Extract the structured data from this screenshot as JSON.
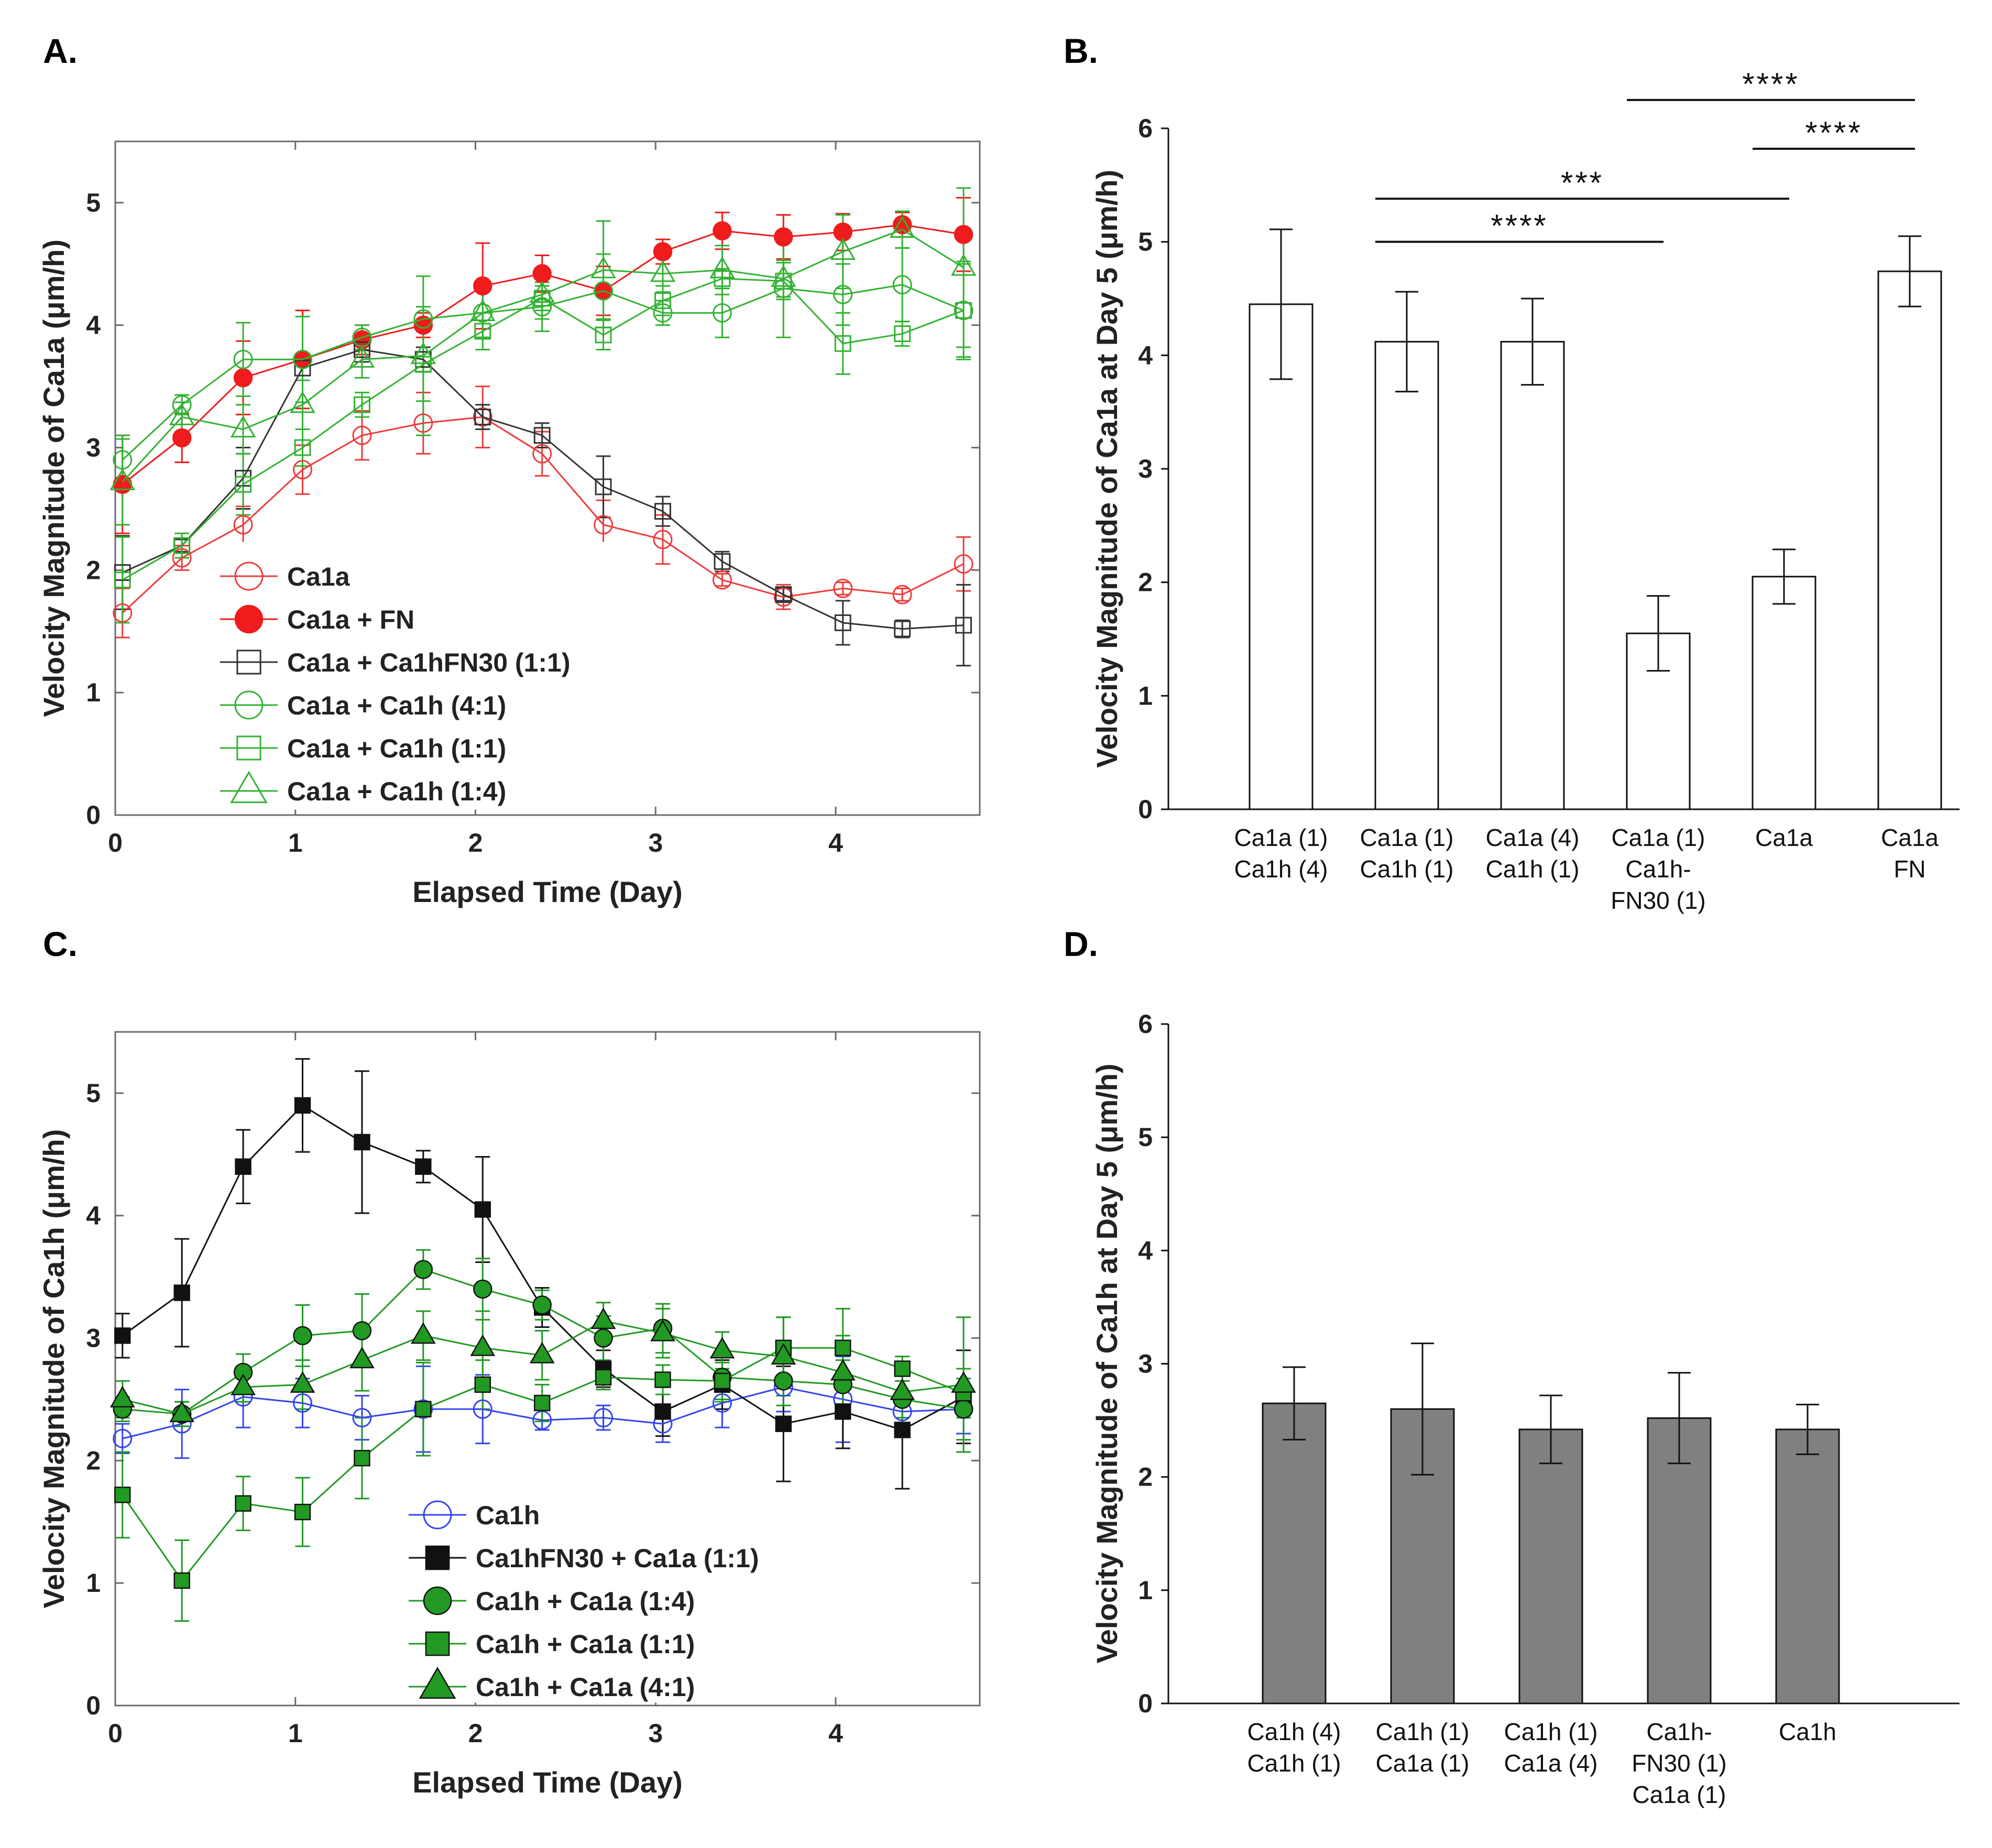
{
  "panels": {
    "A": {
      "letter": "A.",
      "type": "line",
      "xlabel": "Elapsed Time (Day)",
      "ylabel": "Velocity Magnitude of Ca1a (μm/h)",
      "xlim": [
        0,
        4.8
      ],
      "ylim": [
        0,
        5.5
      ],
      "xticks": [
        "0",
        "1",
        "2",
        "3",
        "4"
      ],
      "yticks": [
        "0",
        "1",
        "2",
        "3",
        "4",
        "5"
      ],
      "x": [
        0.04,
        0.37,
        0.71,
        1.04,
        1.37,
        1.71,
        2.04,
        2.37,
        2.71,
        3.04,
        3.37,
        3.71,
        4.04,
        4.37,
        4.71
      ],
      "series": [
        {
          "name": "Ca1a",
          "color": "#ee3b3b",
          "marker": "circle",
          "filled": false,
          "values": [
            1.65,
            2.1,
            2.37,
            2.82,
            3.1,
            3.2,
            3.25,
            2.95,
            2.37,
            2.25,
            1.92,
            1.78,
            1.85,
            1.8,
            2.05
          ],
          "errors": [
            0.2,
            0.1,
            0.15,
            0.2,
            0.2,
            0.25,
            0.25,
            0.18,
            0.2,
            0.2,
            0.05,
            0.1,
            0.05,
            0.05,
            0.22
          ]
        },
        {
          "name": "Ca1a + FN",
          "color": "#ee1c1c",
          "marker": "circle",
          "filled": true,
          "values": [
            2.7,
            3.08,
            3.57,
            3.72,
            3.88,
            4.0,
            4.32,
            4.42,
            4.28,
            4.6,
            4.77,
            4.72,
            4.76,
            4.82,
            4.74
          ],
          "errors": [
            0.4,
            0.2,
            0.3,
            0.4,
            0.12,
            0.1,
            0.35,
            0.15,
            0.2,
            0.1,
            0.15,
            0.18,
            0.15,
            0.1,
            0.3
          ]
        },
        {
          "name": "Ca1a + Ca1hFN30 (1:1)",
          "color": "#333333",
          "marker": "square",
          "filled": false,
          "values": [
            1.98,
            2.2,
            2.75,
            3.65,
            3.8,
            3.72,
            3.25,
            3.1,
            2.68,
            2.48,
            2.07,
            1.8,
            1.57,
            1.52,
            1.55
          ],
          "errors": [
            0.3,
            0.05,
            0.25,
            0.1,
            0.1,
            0.1,
            0.1,
            0.1,
            0.25,
            0.12,
            0.08,
            0.05,
            0.18,
            0.07,
            0.33
          ]
        },
        {
          "name": "Ca1a + Ca1h (4:1)",
          "color": "#33b233",
          "marker": "circle",
          "filled": false,
          "values": [
            2.9,
            3.35,
            3.72,
            3.72,
            3.9,
            4.05,
            4.1,
            4.15,
            4.28,
            4.1,
            4.1,
            4.3,
            4.25,
            4.33,
            4.12
          ],
          "errors": [
            0.2,
            0.08,
            0.3,
            0.35,
            0.1,
            0.1,
            0.2,
            0.2,
            0.3,
            0.1,
            0.2,
            0.4,
            0.25,
            0.3,
            0.38
          ]
        },
        {
          "name": "Ca1a + Ca1h (1:1)",
          "color": "#33b233",
          "marker": "square",
          "filled": false,
          "values": [
            1.92,
            2.2,
            2.7,
            3.0,
            3.35,
            3.68,
            3.95,
            4.22,
            3.92,
            4.2,
            4.38,
            4.36,
            3.85,
            3.93,
            4.12
          ],
          "errors": [
            0.35,
            0.1,
            0.25,
            0.15,
            0.1,
            0.3,
            0.15,
            0.1,
            0.12,
            0.12,
            0.08,
            0.15,
            0.25,
            0.1,
            0.4
          ]
        },
        {
          "name": "Ca1a + Ca1h (1:4)",
          "color": "#33b233",
          "marker": "triangle",
          "filled": false,
          "values": [
            2.72,
            3.25,
            3.15,
            3.35,
            3.72,
            3.75,
            4.1,
            4.25,
            4.45,
            4.42,
            4.45,
            4.38,
            4.6,
            4.78,
            4.47
          ],
          "errors": [
            0.35,
            0.12,
            0.2,
            0.2,
            0.15,
            0.65,
            0.2,
            0.2,
            0.4,
            0.15,
            0.2,
            0.15,
            0.3,
            0.15,
            0.65
          ]
        }
      ]
    },
    "B": {
      "letter": "B.",
      "type": "bar",
      "ylabel": "Velocity Magnitude of Ca1a at Day 5 (μm/h)",
      "ylim": [
        0,
        6
      ],
      "yticks": [
        "0",
        "1",
        "2",
        "3",
        "4",
        "5",
        "6"
      ],
      "bar_color": "#ffffff",
      "categories": [
        [
          "Ca1a (1)",
          "Ca1h (4)"
        ],
        [
          "Ca1a (1)",
          "Ca1h (1)"
        ],
        [
          "Ca1a (4)",
          "Ca1h (1)"
        ],
        [
          "Ca1a (1)",
          "Ca1h-",
          "FN30 (1)"
        ],
        [
          "Ca1a"
        ],
        [
          "Ca1a",
          "FN"
        ]
      ],
      "values": [
        4.45,
        4.12,
        4.12,
        1.55,
        2.05,
        4.74
      ],
      "errors": [
        0.66,
        0.44,
        0.38,
        0.33,
        0.24,
        0.31
      ],
      "significance": [
        {
          "from": 1,
          "to": 3,
          "label": "****",
          "y": 5.0
        },
        {
          "from": 1,
          "to": 4,
          "label": "***",
          "y": 5.38
        },
        {
          "from": 3,
          "to": 5,
          "label": "****",
          "y": 6.25
        },
        {
          "from": 4,
          "to": 5,
          "label": "****",
          "y": 5.82
        }
      ]
    },
    "C": {
      "letter": "C.",
      "type": "line",
      "xlabel": "Elapsed Time (Day)",
      "ylabel": "Velocity Magnitude of Ca1h (μm/h)",
      "xlim": [
        0,
        4.8
      ],
      "ylim": [
        0,
        5.5
      ],
      "xticks": [
        "0",
        "1",
        "2",
        "3",
        "4"
      ],
      "yticks": [
        "0",
        "1",
        "2",
        "3",
        "4",
        "5"
      ],
      "x": [
        0.04,
        0.37,
        0.71,
        1.04,
        1.37,
        1.71,
        2.04,
        2.37,
        2.71,
        3.04,
        3.37,
        3.71,
        4.04,
        4.37,
        4.71
      ],
      "series": [
        {
          "name": "Ca1h",
          "color": "#3344ee",
          "marker": "circle",
          "filled": false,
          "values": [
            2.18,
            2.3,
            2.52,
            2.47,
            2.35,
            2.42,
            2.42,
            2.33,
            2.35,
            2.3,
            2.47,
            2.6,
            2.5,
            2.4,
            2.42
          ],
          "errors": [
            0.12,
            0.28,
            0.25,
            0.2,
            0.18,
            0.35,
            0.28,
            0.08,
            0.1,
            0.15,
            0.2,
            0.2,
            0.35,
            0.15,
            0.2
          ]
        },
        {
          "name": "Ca1hFN30 + Ca1a (1:1)",
          "color": "#111111",
          "marker": "square",
          "filled": true,
          "values": [
            3.02,
            3.37,
            4.4,
            4.9,
            4.6,
            4.4,
            4.05,
            3.25,
            2.75,
            2.4,
            2.62,
            2.3,
            2.4,
            2.25,
            2.52
          ],
          "errors": [
            0.18,
            0.44,
            0.3,
            0.38,
            0.58,
            0.13,
            0.43,
            0.16,
            0.15,
            0.2,
            0.2,
            0.47,
            0.3,
            0.48,
            0.38
          ]
        },
        {
          "name": "Ca1h + Ca1a (1:4)",
          "color": "#229922",
          "marker": "circle",
          "filled": true,
          "values": [
            2.42,
            2.38,
            2.72,
            3.02,
            3.06,
            3.56,
            3.4,
            3.27,
            3.0,
            3.08,
            2.68,
            2.65,
            2.62,
            2.5,
            2.42
          ],
          "errors": [
            0.1,
            0.1,
            0.15,
            0.25,
            0.3,
            0.16,
            0.25,
            0.12,
            0.18,
            0.2,
            0.2,
            0.2,
            0.2,
            0.15,
            0.25
          ]
        },
        {
          "name": "Ca1h + Ca1a (1:1)",
          "color": "#229922",
          "marker": "square",
          "filled": true,
          "values": [
            1.72,
            1.02,
            1.65,
            1.58,
            2.02,
            2.42,
            2.62,
            2.47,
            2.68,
            2.66,
            2.65,
            2.92,
            2.92,
            2.75,
            2.55
          ],
          "errors": [
            0.35,
            0.33,
            0.22,
            0.28,
            0.33,
            0.38,
            0.2,
            0.15,
            0.1,
            0.12,
            0.15,
            0.25,
            0.32,
            0.1,
            0.2
          ]
        },
        {
          "name": "Ca1h + Ca1a (4:1)",
          "color": "#229922",
          "marker": "triangle",
          "filled": true,
          "values": [
            2.5,
            2.38,
            2.6,
            2.62,
            2.82,
            3.02,
            2.92,
            2.86,
            3.14,
            3.04,
            2.9,
            2.85,
            2.72,
            2.56,
            2.62
          ],
          "errors": [
            0.15,
            0.1,
            0.12,
            0.2,
            0.25,
            0.2,
            0.3,
            0.2,
            0.15,
            0.2,
            0.15,
            0.32,
            0.3,
            0.25,
            0.55
          ]
        }
      ]
    },
    "D": {
      "letter": "D.",
      "type": "bar",
      "ylabel": "Velocity Magnitude of Ca1h at Day 5 (μm/h)",
      "ylim": [
        0,
        6
      ],
      "yticks": [
        "0",
        "1",
        "2",
        "3",
        "4",
        "5",
        "6"
      ],
      "bar_color": "#808080",
      "categories": [
        [
          "Ca1h (4)",
          "Ca1h (1)"
        ],
        [
          "Ca1h (1)",
          "Ca1a (1)"
        ],
        [
          "Ca1h (1)",
          "Ca1a (4)"
        ],
        [
          "Ca1h-",
          "FN30 (1)",
          "Ca1a (1)"
        ],
        [
          "Ca1h"
        ]
      ],
      "values": [
        2.65,
        2.6,
        2.42,
        2.52,
        2.42
      ],
      "errors": [
        0.32,
        0.58,
        0.3,
        0.4,
        0.22
      ],
      "significance": []
    }
  }
}
